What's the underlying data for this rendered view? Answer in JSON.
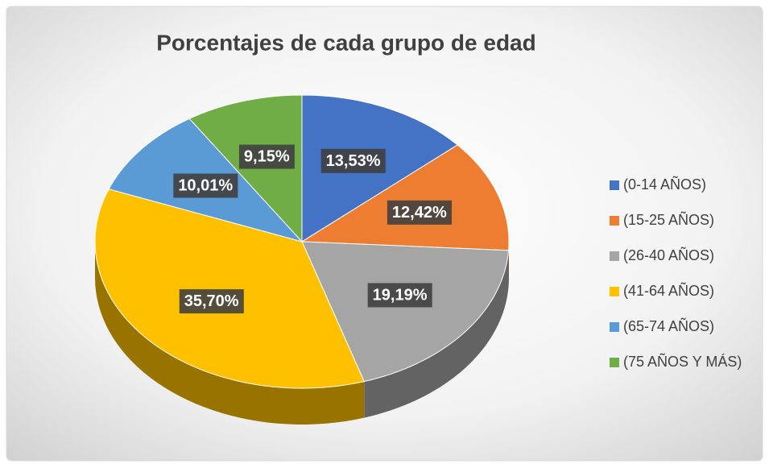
{
  "chart_data": {
    "type": "pie",
    "title": "Porcentajes de cada grupo de edad",
    "categories": [
      "(0-14 AÑOS)",
      "(15-25 AÑOS)",
      "(26-40 AÑOS)",
      "(41-64 AÑOS)",
      "(65-74 AÑOS)",
      "(75 AÑOS Y MÁS)"
    ],
    "values": [
      13.53,
      12.42,
      19.19,
      35.7,
      10.01,
      9.15
    ],
    "value_labels": [
      "13,53%",
      "12,42%",
      "19,19%",
      "35,70%",
      "10,01%",
      "9,15%"
    ],
    "colors": [
      "#4472c4",
      "#ed7d31",
      "#a5a5a5",
      "#ffc000",
      "#5b9bd5",
      "#70ad47"
    ],
    "legend": "right"
  }
}
